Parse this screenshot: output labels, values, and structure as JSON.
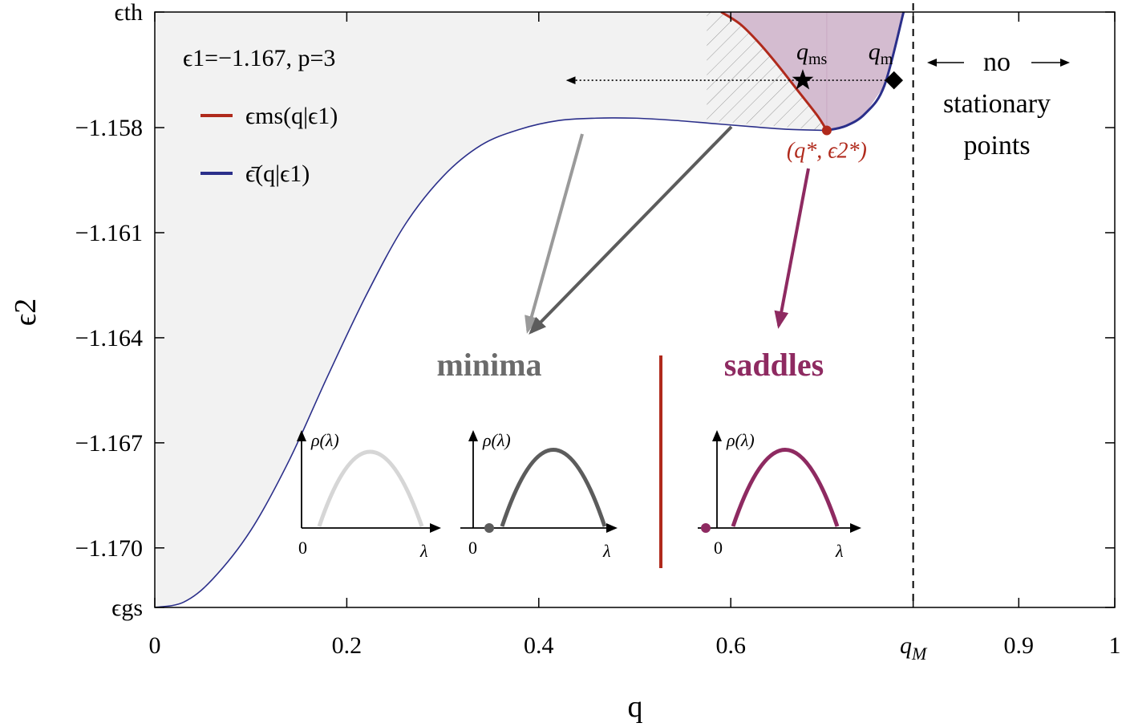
{
  "chart_data": {
    "type": "area",
    "title": "",
    "xlabel": "q",
    "ylabel": "ϵ2",
    "xlim": [
      0,
      1
    ],
    "ylim": [
      -1.1717,
      -1.1547
    ],
    "x_ticks": [
      {
        "value": 0,
        "label": "0"
      },
      {
        "value": 0.2,
        "label": "0.2"
      },
      {
        "value": 0.4,
        "label": "0.4"
      },
      {
        "value": 0.6,
        "label": "0.6"
      },
      {
        "value": 0.79,
        "label": "qM"
      },
      {
        "value": 0.9,
        "label": "0.9"
      },
      {
        "value": 1,
        "label": "1"
      }
    ],
    "y_ticks": [
      {
        "value": -1.1547,
        "label": "ϵth"
      },
      {
        "value": -1.158,
        "label": "−1.158"
      },
      {
        "value": -1.161,
        "label": "−1.161"
      },
      {
        "value": -1.164,
        "label": "−1.164"
      },
      {
        "value": -1.167,
        "label": "−1.167"
      },
      {
        "value": -1.17,
        "label": "−1.170"
      },
      {
        "value": -1.1717,
        "label": "ϵgs"
      }
    ],
    "annotation_params": "ϵ1=−1.167, p=3",
    "series": [
      {
        "name": "ϵ̄(q|ϵ1)",
        "color": "#2b2f8a",
        "x": [
          0,
          0.03,
          0.06,
          0.1,
          0.14,
          0.18,
          0.22,
          0.26,
          0.3,
          0.34,
          0.38,
          0.42,
          0.46,
          0.5,
          0.54,
          0.58,
          0.62,
          0.66,
          0.7,
          0.72,
          0.74,
          0.76,
          0.78
        ],
        "y": [
          -1.1717,
          -1.17155,
          -1.1709,
          -1.1695,
          -1.1675,
          -1.1651,
          -1.1628,
          -1.1608,
          -1.1594,
          -1.1585,
          -1.15805,
          -1.1578,
          -1.15773,
          -1.15773,
          -1.15779,
          -1.15788,
          -1.15797,
          -1.15805,
          -1.15808,
          -1.15795,
          -1.1576,
          -1.1568,
          -1.1547
        ]
      },
      {
        "name": "ϵms(q|ϵ1)",
        "color": "#b02a1c",
        "x": [
          0.59,
          0.61,
          0.63,
          0.65,
          0.67,
          0.69,
          0.7
        ],
        "y": [
          -1.1547,
          -1.15505,
          -1.1556,
          -1.15625,
          -1.15695,
          -1.15765,
          -1.15808
        ]
      }
    ],
    "vertical_line": {
      "x": 0.79,
      "label": "qM",
      "style": "dashed"
    },
    "arrow_line": {
      "y": -1.15665,
      "x_from": 0.77,
      "x_to": 0.43
    },
    "points": [
      {
        "name": "qms",
        "x": 0.675,
        "y": -1.15665,
        "marker": "star"
      },
      {
        "name": "qm",
        "x": 0.77,
        "y": -1.15665,
        "marker": "diamond"
      },
      {
        "name": "(q*, ϵ2*)",
        "x": 0.7,
        "y": -1.15808,
        "marker": "dot",
        "color": "#b02a1c"
      }
    ],
    "regions": [
      {
        "name": "no stationary points",
        "x_from": 0.79,
        "x_to": 1
      }
    ]
  },
  "labels": {
    "no_stationary": [
      "no",
      "stationary",
      "points"
    ],
    "minima": "minima",
    "saddles": "saddles",
    "rho": "ρ(λ)",
    "lambda": "λ",
    "zero": "0",
    "qms_sub": "ms",
    "qm_sub": "m",
    "qstar": "(q*, ϵ2*)"
  },
  "colors": {
    "paramecium_fill": "#d4bcd0",
    "gray_fill": "#f2f2f2",
    "minima_text": "#6b6b6b",
    "saddles_text": "#8e2a61",
    "light_gray": "#d6d6d6",
    "dark_gray": "#5c5c5c",
    "magenta": "#8e2a61",
    "red": "#b02a1c",
    "blue": "#2b2f8a"
  }
}
